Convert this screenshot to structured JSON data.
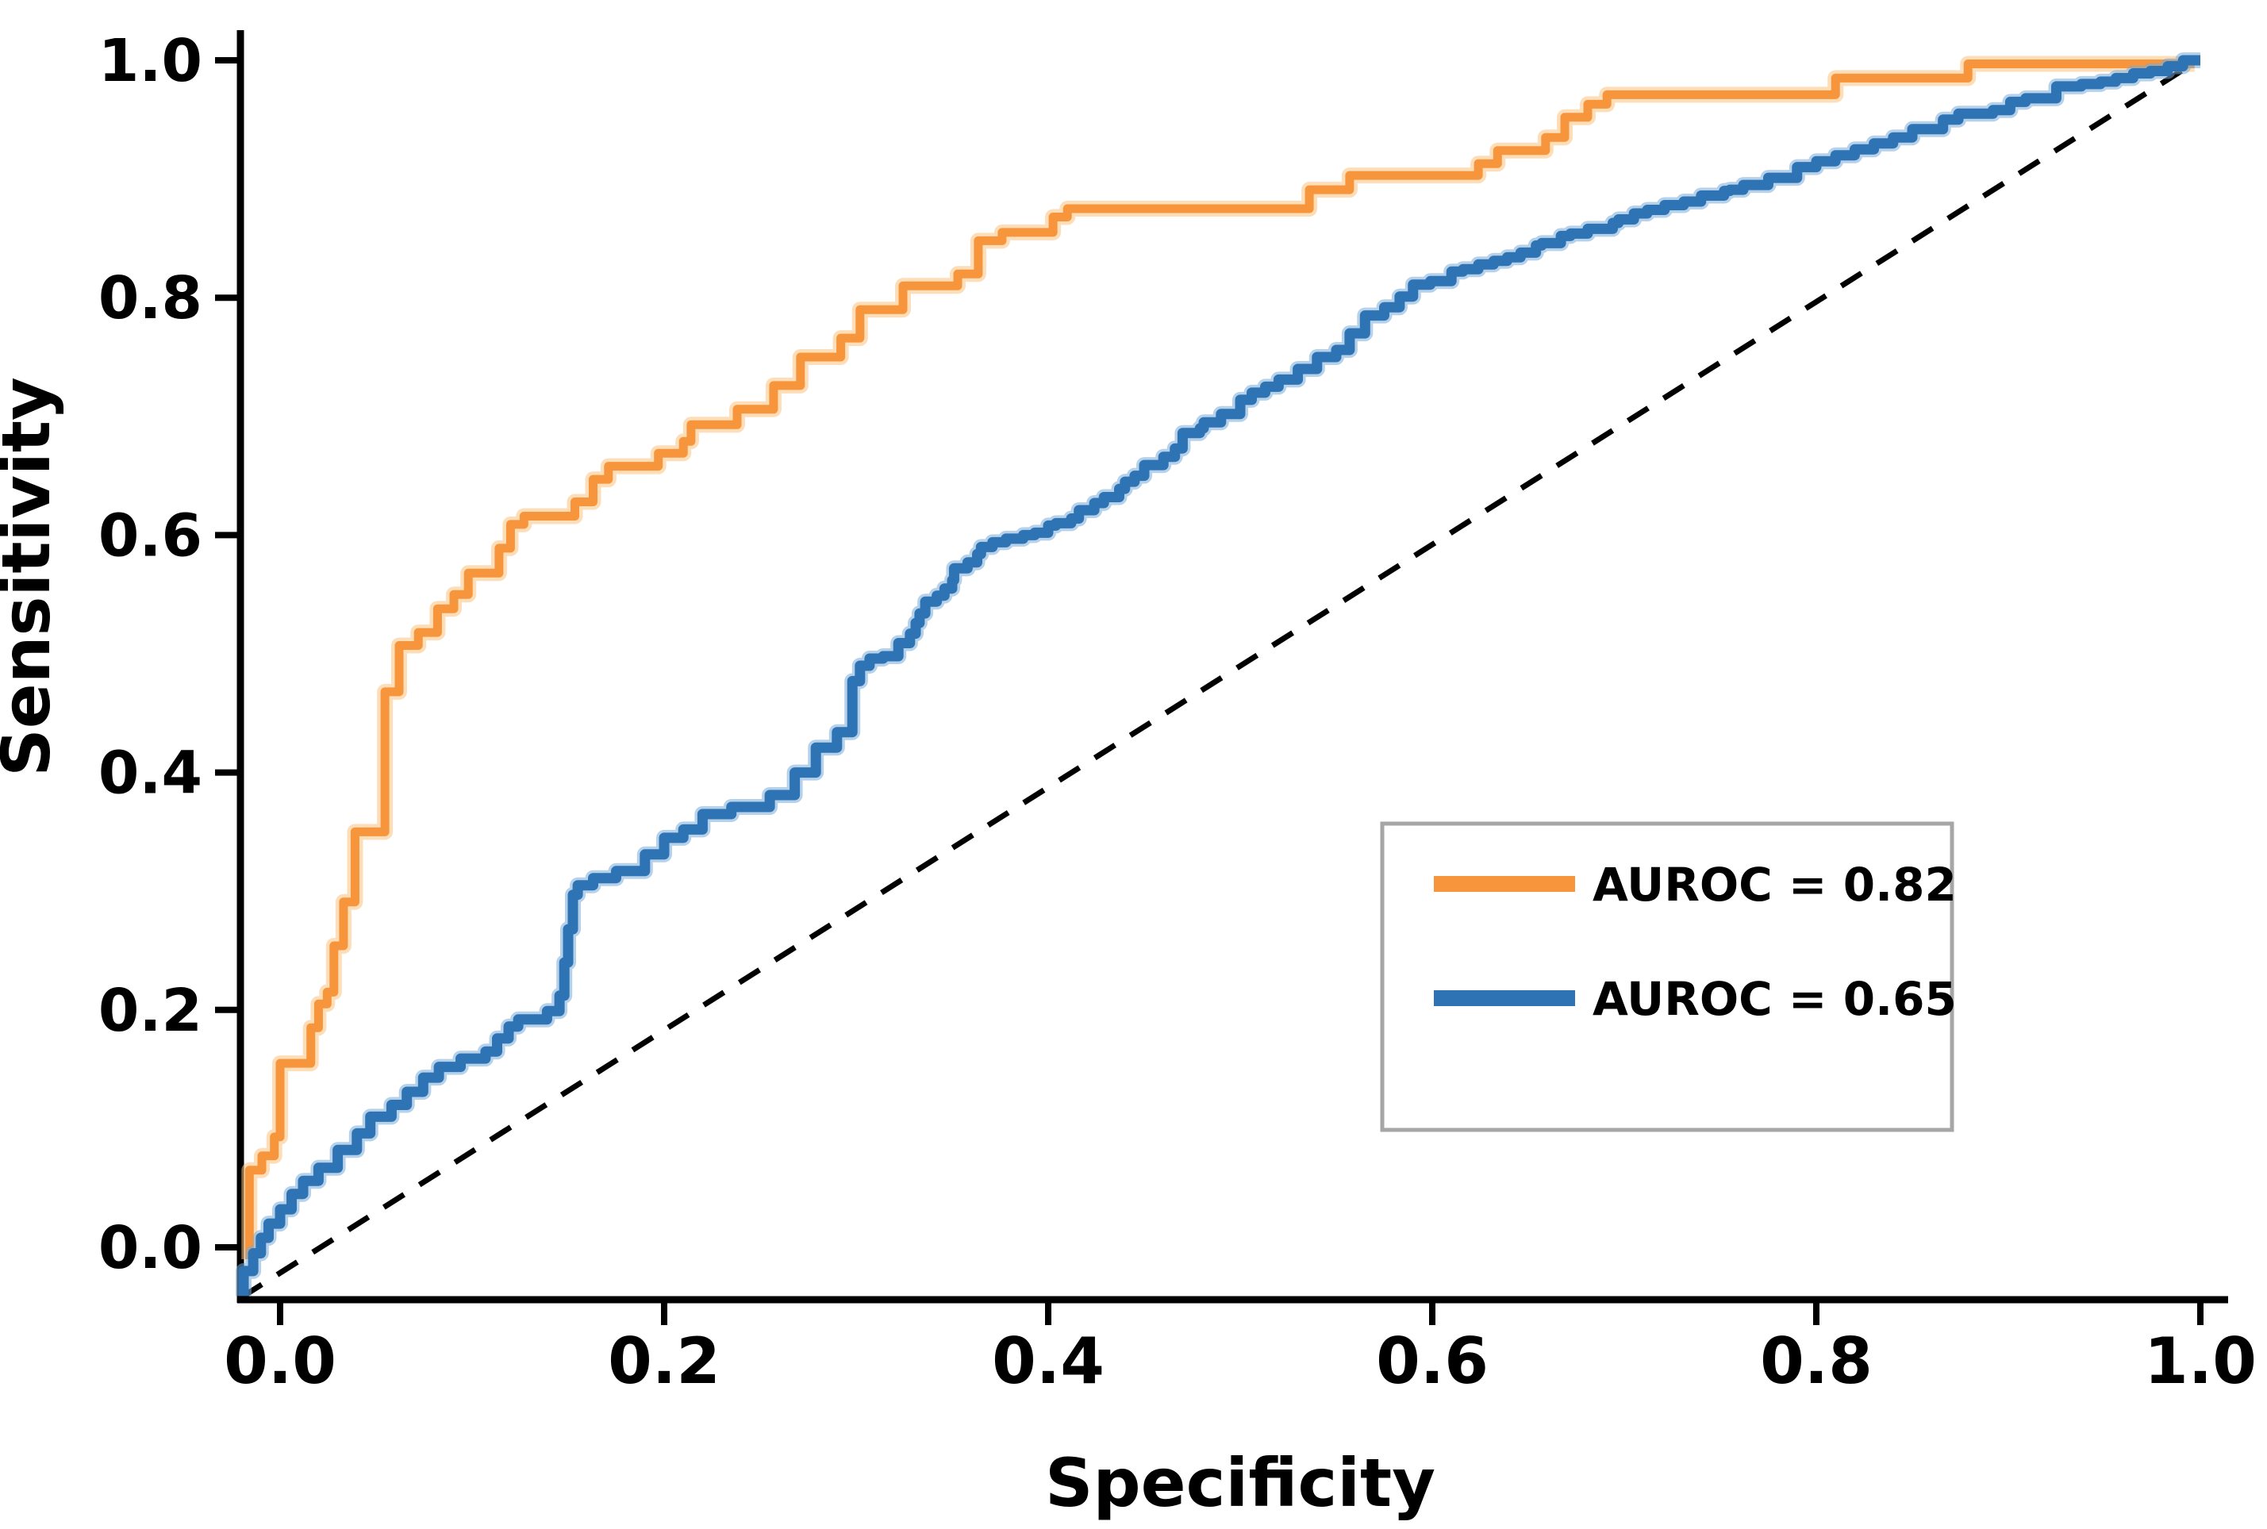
{
  "figure": {
    "kind": "roc-curve-plot",
    "background": "#ffffff"
  },
  "axes": {
    "x": {
      "title": "Specificity",
      "tick_labels": [
        "0.0",
        "0.2",
        "0.4",
        "0.6",
        "0.8",
        "1.0"
      ],
      "tick_values": [
        0.0,
        0.2,
        0.4,
        0.6,
        0.8,
        1.0
      ],
      "range": [
        0,
        1
      ]
    },
    "y": {
      "title": "Sensitivity",
      "tick_labels": [
        "0.0",
        "0.2",
        "0.4",
        "0.6",
        "0.8",
        "1.0"
      ],
      "tick_values": [
        0.0,
        0.2,
        0.4,
        0.6,
        0.8,
        1.0
      ],
      "range": [
        0,
        1
      ]
    }
  },
  "legend": {
    "position": "lower-right-inside",
    "border_color": "#A6A6A6",
    "fill": "#ffffff",
    "items": [
      {
        "label": "AUROC = 0.82",
        "color": "#F6953B"
      },
      {
        "label": "AUROC = 0.65",
        "color": "#2E73B4"
      }
    ]
  },
  "colors": {
    "axis": "#000000",
    "text": "#000000",
    "diagonal": "#000000",
    "orange_series": "#F6953B",
    "orange_halo": "#FBC27E",
    "blue_series": "#2E73B4",
    "blue_halo": "#7AACD9"
  },
  "chart_data": {
    "type": "line",
    "title": "",
    "xlabel": "Specificity",
    "ylabel": "Sensitivity",
    "xlim": [
      0,
      1
    ],
    "ylim": [
      0,
      1
    ],
    "grid": false,
    "legend_position": "lower-right-inside",
    "series": [
      {
        "name": "AUROC = 0.82",
        "auroc": 0.82,
        "color": "#F6953B",
        "halo_color": "#FBC27E",
        "draw": "linear",
        "points": [
          [
            -0.016,
            -0.01
          ],
          [
            -0.016,
            0.065
          ],
          [
            -0.0095,
            0.065
          ],
          [
            -0.0095,
            0.077
          ],
          [
            -0.003,
            0.077
          ],
          [
            -0.003,
            0.093
          ],
          [
            0.0,
            0.093
          ],
          [
            0.0,
            0.155
          ],
          [
            0.016,
            0.155
          ],
          [
            0.016,
            0.185
          ],
          [
            0.02,
            0.185
          ],
          [
            0.02,
            0.205
          ],
          [
            0.0245,
            0.205
          ],
          [
            0.0245,
            0.215
          ],
          [
            0.028,
            0.215
          ],
          [
            0.028,
            0.254
          ],
          [
            0.033,
            0.254
          ],
          [
            0.033,
            0.291
          ],
          [
            0.039,
            0.291
          ],
          [
            0.039,
            0.35
          ],
          [
            0.0546,
            0.35
          ],
          [
            0.0546,
            0.468
          ],
          [
            0.062,
            0.468
          ],
          [
            0.062,
            0.507
          ],
          [
            0.072,
            0.507
          ],
          [
            0.072,
            0.518
          ],
          [
            0.082,
            0.518
          ],
          [
            0.082,
            0.538
          ],
          [
            0.0905,
            0.538
          ],
          [
            0.0905,
            0.55
          ],
          [
            0.098,
            0.55
          ],
          [
            0.098,
            0.568
          ],
          [
            0.114,
            0.568
          ],
          [
            0.114,
            0.589
          ],
          [
            0.12,
            0.589
          ],
          [
            0.12,
            0.609
          ],
          [
            0.127,
            0.609
          ],
          [
            0.127,
            0.616
          ],
          [
            0.1535,
            0.616
          ],
          [
            0.1535,
            0.628
          ],
          [
            0.163,
            0.628
          ],
          [
            0.163,
            0.647
          ],
          [
            0.171,
            0.647
          ],
          [
            0.171,
            0.658
          ],
          [
            0.197,
            0.658
          ],
          [
            0.197,
            0.669
          ],
          [
            0.21,
            0.669
          ],
          [
            0.21,
            0.679
          ],
          [
            0.214,
            0.679
          ],
          [
            0.214,
            0.693
          ],
          [
            0.238,
            0.693
          ],
          [
            0.238,
            0.706
          ],
          [
            0.257,
            0.706
          ],
          [
            0.257,
            0.726
          ],
          [
            0.271,
            0.726
          ],
          [
            0.271,
            0.75
          ],
          [
            0.292,
            0.75
          ],
          [
            0.292,
            0.766
          ],
          [
            0.302,
            0.766
          ],
          [
            0.302,
            0.79
          ],
          [
            0.3244,
            0.79
          ],
          [
            0.3244,
            0.81
          ],
          [
            0.3529,
            0.81
          ],
          [
            0.3529,
            0.82
          ],
          [
            0.3636,
            0.82
          ],
          [
            0.3636,
            0.848
          ],
          [
            0.376,
            0.848
          ],
          [
            0.376,
            0.855
          ],
          [
            0.4025,
            0.855
          ],
          [
            0.4025,
            0.868
          ],
          [
            0.41,
            0.868
          ],
          [
            0.41,
            0.875
          ],
          [
            0.536,
            0.875
          ],
          [
            0.536,
            0.891
          ],
          [
            0.557,
            0.891
          ],
          [
            0.557,
            0.903
          ],
          [
            0.624,
            0.903
          ],
          [
            0.624,
            0.913
          ],
          [
            0.634,
            0.913
          ],
          [
            0.634,
            0.924
          ],
          [
            0.659,
            0.924
          ],
          [
            0.659,
            0.935
          ],
          [
            0.669,
            0.935
          ],
          [
            0.669,
            0.952
          ],
          [
            0.681,
            0.952
          ],
          [
            0.681,
            0.963
          ],
          [
            0.691,
            0.963
          ],
          [
            0.691,
            0.971
          ],
          [
            0.81,
            0.971
          ],
          [
            0.81,
            0.985
          ],
          [
            0.879,
            0.985
          ],
          [
            0.879,
            0.997
          ],
          [
            0.997,
            0.997
          ]
        ]
      },
      {
        "name": "AUROC = 0.65",
        "auroc": 0.65,
        "color": "#2E73B4",
        "halo_color": "#7AACD9",
        "draw": "steps",
        "points": [
          [
            -0.019,
            -0.041
          ],
          [
            -0.014,
            -0.02
          ],
          [
            -0.01,
            -0.005
          ],
          [
            -0.006,
            0.008
          ],
          [
            0.0,
            0.02
          ],
          [
            0.006,
            0.032
          ],
          [
            0.012,
            0.045
          ],
          [
            0.02,
            0.056
          ],
          [
            0.03,
            0.067
          ],
          [
            0.04,
            0.082
          ],
          [
            0.047,
            0.096
          ],
          [
            0.058,
            0.11
          ],
          [
            0.066,
            0.12
          ],
          [
            0.0745,
            0.131
          ],
          [
            0.0827,
            0.143
          ],
          [
            0.094,
            0.152
          ],
          [
            0.107,
            0.159
          ],
          [
            0.113,
            0.165
          ],
          [
            0.119,
            0.176
          ],
          [
            0.124,
            0.186
          ],
          [
            0.139,
            0.192
          ],
          [
            0.1455,
            0.199
          ],
          [
            0.148,
            0.212
          ],
          [
            0.15,
            0.24
          ],
          [
            0.1525,
            0.268
          ],
          [
            0.155,
            0.297
          ],
          [
            0.163,
            0.305
          ],
          [
            0.175,
            0.311
          ],
          [
            0.19,
            0.317
          ],
          [
            0.2,
            0.331
          ],
          [
            0.21,
            0.345
          ],
          [
            0.22,
            0.352
          ],
          [
            0.235,
            0.365
          ],
          [
            0.255,
            0.371
          ],
          [
            0.268,
            0.381
          ],
          [
            0.279,
            0.4
          ],
          [
            0.29,
            0.421
          ],
          [
            0.298,
            0.434
          ],
          [
            0.302,
            0.477
          ],
          [
            0.307,
            0.49
          ],
          [
            0.314,
            0.496
          ],
          [
            0.322,
            0.498
          ],
          [
            0.328,
            0.509
          ],
          [
            0.331,
            0.517
          ],
          [
            0.333,
            0.526
          ],
          [
            0.336,
            0.534
          ],
          [
            0.342,
            0.544
          ],
          [
            0.346,
            0.549
          ],
          [
            0.35,
            0.555
          ],
          [
            0.351,
            0.562
          ],
          [
            0.358,
            0.572
          ],
          [
            0.363,
            0.577
          ],
          [
            0.365,
            0.584
          ],
          [
            0.371,
            0.59
          ],
          [
            0.378,
            0.594
          ],
          [
            0.387,
            0.597
          ],
          [
            0.393,
            0.6
          ],
          [
            0.4,
            0.602
          ],
          [
            0.404,
            0.608
          ],
          [
            0.412,
            0.61
          ],
          [
            0.416,
            0.614
          ],
          [
            0.424,
            0.621
          ],
          [
            0.429,
            0.627
          ],
          [
            0.437,
            0.632
          ],
          [
            0.44,
            0.639
          ],
          [
            0.445,
            0.645
          ],
          [
            0.45,
            0.65
          ],
          [
            0.46,
            0.659
          ],
          [
            0.466,
            0.666
          ],
          [
            0.47,
            0.673
          ],
          [
            0.479,
            0.686
          ],
          [
            0.481,
            0.69
          ],
          [
            0.49,
            0.695
          ],
          [
            0.5,
            0.702
          ],
          [
            0.506,
            0.714
          ],
          [
            0.513,
            0.72
          ],
          [
            0.52,
            0.725
          ],
          [
            0.53,
            0.731
          ],
          [
            0.54,
            0.74
          ],
          [
            0.55,
            0.75
          ],
          [
            0.557,
            0.756
          ],
          [
            0.565,
            0.77
          ],
          [
            0.575,
            0.785
          ],
          [
            0.583,
            0.792
          ],
          [
            0.59,
            0.801
          ],
          [
            0.599,
            0.811
          ],
          [
            0.61,
            0.814
          ],
          [
            0.616,
            0.822
          ],
          [
            0.624,
            0.824
          ],
          [
            0.632,
            0.828
          ],
          [
            0.639,
            0.831
          ],
          [
            0.646,
            0.834
          ],
          [
            0.654,
            0.838
          ],
          [
            0.657,
            0.844
          ],
          [
            0.667,
            0.846
          ],
          [
            0.672,
            0.852
          ],
          [
            0.681,
            0.854
          ],
          [
            0.694,
            0.858
          ],
          [
            0.697,
            0.863
          ],
          [
            0.705,
            0.866
          ],
          [
            0.712,
            0.871
          ],
          [
            0.721,
            0.874
          ],
          [
            0.731,
            0.878
          ],
          [
            0.74,
            0.881
          ],
          [
            0.752,
            0.886
          ],
          [
            0.755,
            0.89
          ],
          [
            0.762,
            0.891
          ],
          [
            0.775,
            0.895
          ],
          [
            0.79,
            0.901
          ],
          [
            0.8,
            0.91
          ],
          [
            0.81,
            0.915
          ],
          [
            0.82,
            0.92
          ],
          [
            0.83,
            0.925
          ],
          [
            0.84,
            0.93
          ],
          [
            0.85,
            0.935
          ],
          [
            0.866,
            0.942
          ],
          [
            0.874,
            0.95
          ],
          [
            0.892,
            0.955
          ],
          [
            0.901,
            0.958
          ],
          [
            0.909,
            0.965
          ],
          [
            0.925,
            0.968
          ],
          [
            0.938,
            0.978
          ],
          [
            0.948,
            0.98
          ],
          [
            0.956,
            0.982
          ],
          [
            0.965,
            0.985
          ],
          [
            0.974,
            0.989
          ],
          [
            0.983,
            0.991
          ],
          [
            0.991,
            0.995
          ],
          [
            1.0,
            1.0
          ]
        ]
      }
    ],
    "reference_line": {
      "name": "chance-diagonal",
      "style": "dashed",
      "color": "#000000",
      "points": [
        [
          -0.02,
          -0.042
        ],
        [
          0.995,
          0.996
        ]
      ]
    }
  }
}
